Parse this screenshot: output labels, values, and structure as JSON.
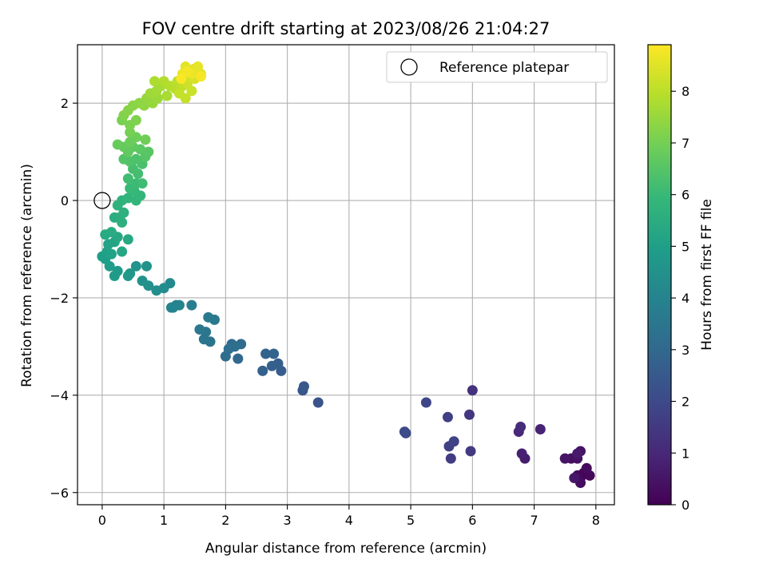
{
  "chart_data": {
    "type": "scatter",
    "title": "FOV centre drift starting at 2023/08/26 21:04:27",
    "xlabel": "Angular distance from reference (arcmin)",
    "ylabel": "Rotation from reference (arcmin)",
    "xlim": [
      -0.4,
      8.3
    ],
    "ylim": [
      -6.25,
      3.2
    ],
    "xticks": [
      0,
      1,
      2,
      3,
      4,
      5,
      6,
      7,
      8
    ],
    "xtick_labels": [
      "0",
      "1",
      "2",
      "3",
      "4",
      "5",
      "6",
      "7",
      "8"
    ],
    "yticks": [
      -6,
      -4,
      -2,
      0,
      2
    ],
    "ytick_labels": [
      "−6",
      "−4",
      "−2",
      "0",
      "2"
    ],
    "grid": true,
    "legend": {
      "placement": "top-right",
      "entries": [
        "Reference platepar"
      ]
    },
    "reference_point": {
      "x": 0,
      "y": 0,
      "label": "Reference platepar"
    },
    "colorbar": {
      "label": "Hours from first FF file",
      "range": [
        0,
        8.9
      ],
      "ticks": [
        0,
        1,
        2,
        3,
        4,
        5,
        6,
        7,
        8
      ],
      "tick_labels": [
        "0",
        "1",
        "2",
        "3",
        "4",
        "5",
        "6",
        "7",
        "8"
      ],
      "colormap_stops": [
        "#440154",
        "#482878",
        "#3e4989",
        "#31688e",
        "#26828e",
        "#1f9e89",
        "#35b779",
        "#6ece58",
        "#b5de2b",
        "#fde725"
      ]
    },
    "points": [
      {
        "x": 7.75,
        "y": -5.7,
        "c": 0.0
      },
      {
        "x": 7.8,
        "y": -5.6,
        "c": 0.1
      },
      {
        "x": 7.9,
        "y": -5.65,
        "c": 0.15
      },
      {
        "x": 7.7,
        "y": -5.65,
        "c": 0.2
      },
      {
        "x": 7.85,
        "y": -5.5,
        "c": 0.25
      },
      {
        "x": 7.75,
        "y": -5.8,
        "c": 0.3
      },
      {
        "x": 7.6,
        "y": -5.3,
        "c": 0.35
      },
      {
        "x": 7.7,
        "y": -5.3,
        "c": 0.4
      },
      {
        "x": 7.75,
        "y": -5.15,
        "c": 0.45
      },
      {
        "x": 7.5,
        "y": -5.3,
        "c": 0.5
      },
      {
        "x": 7.65,
        "y": -5.7,
        "c": 0.55
      },
      {
        "x": 7.7,
        "y": -5.2,
        "c": 0.6
      },
      {
        "x": 6.85,
        "y": -5.3,
        "c": 0.7
      },
      {
        "x": 6.8,
        "y": -5.2,
        "c": 0.8
      },
      {
        "x": 7.1,
        "y": -4.7,
        "c": 0.9
      },
      {
        "x": 6.75,
        "y": -4.75,
        "c": 1.0
      },
      {
        "x": 6.78,
        "y": -4.65,
        "c": 1.1
      },
      {
        "x": 6.0,
        "y": -3.9,
        "c": 1.3
      },
      {
        "x": 5.95,
        "y": -4.4,
        "c": 1.4
      },
      {
        "x": 5.97,
        "y": -5.15,
        "c": 1.5
      },
      {
        "x": 5.65,
        "y": -5.3,
        "c": 1.6
      },
      {
        "x": 5.6,
        "y": -4.45,
        "c": 1.7
      },
      {
        "x": 5.62,
        "y": -5.05,
        "c": 1.75
      },
      {
        "x": 5.7,
        "y": -4.95,
        "c": 1.8
      },
      {
        "x": 5.25,
        "y": -4.15,
        "c": 1.9
      },
      {
        "x": 4.9,
        "y": -4.75,
        "c": 2.0
      },
      {
        "x": 4.92,
        "y": -4.78,
        "c": 2.05
      },
      {
        "x": 3.5,
        "y": -4.15,
        "c": 2.3
      },
      {
        "x": 3.25,
        "y": -3.9,
        "c": 2.4
      },
      {
        "x": 3.27,
        "y": -3.82,
        "c": 2.45
      },
      {
        "x": 2.9,
        "y": -3.5,
        "c": 2.6
      },
      {
        "x": 2.85,
        "y": -3.35,
        "c": 2.65
      },
      {
        "x": 2.75,
        "y": -3.4,
        "c": 2.7
      },
      {
        "x": 2.6,
        "y": -3.5,
        "c": 2.75
      },
      {
        "x": 2.65,
        "y": -3.15,
        "c": 2.8
      },
      {
        "x": 2.78,
        "y": -3.15,
        "c": 2.85
      },
      {
        "x": 2.2,
        "y": -3.25,
        "c": 3.0
      },
      {
        "x": 2.25,
        "y": -2.95,
        "c": 3.05
      },
      {
        "x": 2.1,
        "y": -2.95,
        "c": 3.1
      },
      {
        "x": 2.0,
        "y": -3.2,
        "c": 3.15
      },
      {
        "x": 2.05,
        "y": -3.05,
        "c": 3.2
      },
      {
        "x": 2.15,
        "y": -3.0,
        "c": 3.25
      },
      {
        "x": 1.75,
        "y": -2.9,
        "c": 3.4
      },
      {
        "x": 1.65,
        "y": -2.85,
        "c": 3.45
      },
      {
        "x": 1.68,
        "y": -2.7,
        "c": 3.5
      },
      {
        "x": 1.58,
        "y": -2.65,
        "c": 3.55
      },
      {
        "x": 1.82,
        "y": -2.45,
        "c": 3.6
      },
      {
        "x": 1.72,
        "y": -2.4,
        "c": 3.65
      },
      {
        "x": 1.45,
        "y": -2.15,
        "c": 3.8
      },
      {
        "x": 1.2,
        "y": -2.15,
        "c": 3.9
      },
      {
        "x": 1.12,
        "y": -2.2,
        "c": 3.95
      },
      {
        "x": 1.25,
        "y": -2.15,
        "c": 4.0
      },
      {
        "x": 1.15,
        "y": -2.2,
        "c": 4.05
      },
      {
        "x": 1.1,
        "y": -1.7,
        "c": 4.2
      },
      {
        "x": 1.0,
        "y": -1.8,
        "c": 4.3
      },
      {
        "x": 0.88,
        "y": -1.85,
        "c": 4.4
      },
      {
        "x": 0.75,
        "y": -1.75,
        "c": 4.45
      },
      {
        "x": 0.65,
        "y": -1.65,
        "c": 4.5
      },
      {
        "x": 0.72,
        "y": -1.35,
        "c": 4.55
      },
      {
        "x": 0.55,
        "y": -1.35,
        "c": 4.6
      },
      {
        "x": 0.45,
        "y": -1.5,
        "c": 4.7
      },
      {
        "x": 0.42,
        "y": -1.55,
        "c": 4.75
      },
      {
        "x": 0.25,
        "y": -1.45,
        "c": 4.8
      },
      {
        "x": 0.2,
        "y": -1.55,
        "c": 4.85
      },
      {
        "x": 0.12,
        "y": -1.35,
        "c": 4.9
      },
      {
        "x": 0.05,
        "y": -1.2,
        "c": 4.95
      },
      {
        "x": 0.0,
        "y": -1.15,
        "c": 5.0
      },
      {
        "x": 0.08,
        "y": -1.05,
        "c": 5.05
      },
      {
        "x": 0.15,
        "y": -1.1,
        "c": 5.1
      },
      {
        "x": 0.1,
        "y": -0.9,
        "c": 5.15
      },
      {
        "x": 0.2,
        "y": -0.85,
        "c": 5.2
      },
      {
        "x": 0.32,
        "y": -1.05,
        "c": 5.25
      },
      {
        "x": 0.25,
        "y": -0.75,
        "c": 5.3
      },
      {
        "x": 0.42,
        "y": -0.8,
        "c": 5.35
      },
      {
        "x": 0.05,
        "y": -0.7,
        "c": 5.4
      },
      {
        "x": 0.15,
        "y": -0.65,
        "c": 5.45
      },
      {
        "x": 0.2,
        "y": -0.35,
        "c": 5.5
      },
      {
        "x": 0.28,
        "y": -0.35,
        "c": 5.55
      },
      {
        "x": 0.32,
        "y": -0.45,
        "c": 5.6
      },
      {
        "x": 0.35,
        "y": -0.25,
        "c": 5.65
      },
      {
        "x": 0.25,
        "y": -0.1,
        "c": 5.7
      },
      {
        "x": 0.32,
        "y": 0.0,
        "c": 5.75
      },
      {
        "x": 0.42,
        "y": 0.05,
        "c": 5.8
      },
      {
        "x": 0.55,
        "y": 0.0,
        "c": 5.85
      },
      {
        "x": 0.62,
        "y": 0.1,
        "c": 5.9
      },
      {
        "x": 0.52,
        "y": 0.2,
        "c": 5.95
      },
      {
        "x": 0.45,
        "y": 0.25,
        "c": 6.0
      },
      {
        "x": 0.55,
        "y": 0.35,
        "c": 6.05
      },
      {
        "x": 0.65,
        "y": 0.35,
        "c": 6.1
      },
      {
        "x": 0.42,
        "y": 0.45,
        "c": 6.15
      },
      {
        "x": 0.58,
        "y": 0.55,
        "c": 6.2
      },
      {
        "x": 0.5,
        "y": 0.65,
        "c": 6.25
      },
      {
        "x": 0.65,
        "y": 0.75,
        "c": 6.3
      },
      {
        "x": 0.55,
        "y": 0.85,
        "c": 6.35
      },
      {
        "x": 0.45,
        "y": 0.8,
        "c": 6.4
      },
      {
        "x": 0.35,
        "y": 0.85,
        "c": 6.45
      },
      {
        "x": 0.7,
        "y": 0.9,
        "c": 6.5
      },
      {
        "x": 0.75,
        "y": 1.0,
        "c": 6.55
      },
      {
        "x": 0.62,
        "y": 1.05,
        "c": 6.6
      },
      {
        "x": 0.5,
        "y": 1.1,
        "c": 6.65
      },
      {
        "x": 0.42,
        "y": 1.0,
        "c": 6.7
      },
      {
        "x": 0.35,
        "y": 1.1,
        "c": 6.75
      },
      {
        "x": 0.25,
        "y": 1.15,
        "c": 6.8
      },
      {
        "x": 0.45,
        "y": 1.2,
        "c": 6.85
      },
      {
        "x": 0.55,
        "y": 1.3,
        "c": 6.9
      },
      {
        "x": 0.7,
        "y": 1.25,
        "c": 6.95
      },
      {
        "x": 0.45,
        "y": 1.4,
        "c": 7.0
      },
      {
        "x": 0.32,
        "y": 1.65,
        "c": 7.05
      },
      {
        "x": 0.45,
        "y": 1.55,
        "c": 7.1
      },
      {
        "x": 0.55,
        "y": 1.65,
        "c": 7.15
      },
      {
        "x": 0.35,
        "y": 1.75,
        "c": 7.2
      },
      {
        "x": 0.42,
        "y": 1.85,
        "c": 7.25
      },
      {
        "x": 0.5,
        "y": 1.95,
        "c": 7.3
      },
      {
        "x": 0.6,
        "y": 2.0,
        "c": 7.35
      },
      {
        "x": 0.68,
        "y": 1.95,
        "c": 7.4
      },
      {
        "x": 0.72,
        "y": 2.1,
        "c": 7.45
      },
      {
        "x": 0.82,
        "y": 2.0,
        "c": 7.5
      },
      {
        "x": 0.9,
        "y": 2.1,
        "c": 7.55
      },
      {
        "x": 0.78,
        "y": 2.2,
        "c": 7.6
      },
      {
        "x": 0.88,
        "y": 2.25,
        "c": 7.65
      },
      {
        "x": 0.95,
        "y": 2.35,
        "c": 7.7
      },
      {
        "x": 1.05,
        "y": 2.15,
        "c": 7.75
      },
      {
        "x": 0.85,
        "y": 2.45,
        "c": 7.8
      },
      {
        "x": 1.0,
        "y": 2.45,
        "c": 7.85
      },
      {
        "x": 1.1,
        "y": 2.35,
        "c": 7.9
      },
      {
        "x": 1.18,
        "y": 2.3,
        "c": 7.95
      },
      {
        "x": 1.22,
        "y": 2.45,
        "c": 8.0
      },
      {
        "x": 1.3,
        "y": 2.35,
        "c": 8.05
      },
      {
        "x": 1.25,
        "y": 2.2,
        "c": 8.1
      },
      {
        "x": 1.35,
        "y": 2.1,
        "c": 8.15
      },
      {
        "x": 1.45,
        "y": 2.25,
        "c": 8.2
      },
      {
        "x": 1.38,
        "y": 2.4,
        "c": 8.25
      },
      {
        "x": 1.42,
        "y": 2.55,
        "c": 8.3
      },
      {
        "x": 1.5,
        "y": 2.5,
        "c": 8.35
      },
      {
        "x": 1.55,
        "y": 2.65,
        "c": 8.4
      },
      {
        "x": 1.48,
        "y": 2.7,
        "c": 8.45
      },
      {
        "x": 1.6,
        "y": 2.6,
        "c": 8.5
      },
      {
        "x": 1.35,
        "y": 2.75,
        "c": 8.55
      },
      {
        "x": 1.55,
        "y": 2.75,
        "c": 8.6
      },
      {
        "x": 1.45,
        "y": 2.6,
        "c": 8.65
      },
      {
        "x": 1.3,
        "y": 2.6,
        "c": 8.7
      },
      {
        "x": 1.38,
        "y": 2.65,
        "c": 8.75
      },
      {
        "x": 1.6,
        "y": 2.55,
        "c": 8.8
      },
      {
        "x": 1.28,
        "y": 2.5,
        "c": 8.85
      }
    ]
  }
}
